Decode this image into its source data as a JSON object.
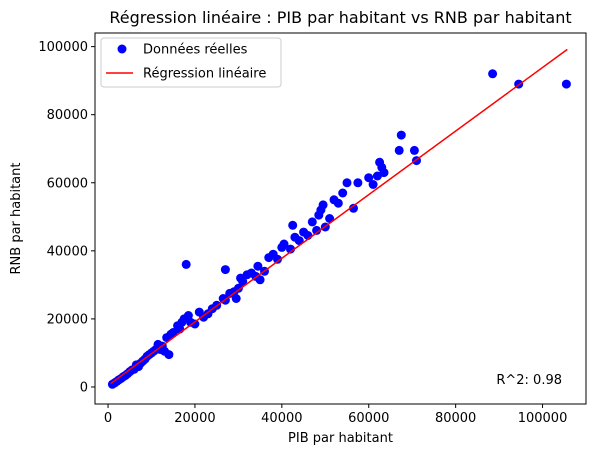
{
  "chart_data": {
    "type": "scatter",
    "title": "Régression linéaire : PIB par habitant vs RNB par habitant",
    "xlabel": "PIB par habitant",
    "ylabel": "RNB par habitant",
    "xlim": [
      -3000,
      110000
    ],
    "ylim": [
      -5000,
      104000
    ],
    "xticks": [
      0,
      20000,
      40000,
      60000,
      80000,
      100000
    ],
    "yticks": [
      0,
      20000,
      40000,
      60000,
      80000,
      100000
    ],
    "grid": false,
    "legend_position": "top-left",
    "annotation": "R^2: 0.98",
    "series": [
      {
        "name": "Données réelles",
        "kind": "scatter",
        "color": "#0000ff",
        "points": [
          [
            1000,
            800
          ],
          [
            1500,
            1200
          ],
          [
            2000,
            1600
          ],
          [
            2500,
            2100
          ],
          [
            3000,
            2500
          ],
          [
            3500,
            3000
          ],
          [
            4000,
            3400
          ],
          [
            4500,
            3900
          ],
          [
            5000,
            4500
          ],
          [
            5500,
            5000
          ],
          [
            6000,
            5200
          ],
          [
            6500,
            6500
          ],
          [
            7000,
            6000
          ],
          [
            7500,
            7000
          ],
          [
            8000,
            7600
          ],
          [
            8500,
            8200
          ],
          [
            9000,
            9000
          ],
          [
            9500,
            9500
          ],
          [
            10000,
            10000
          ],
          [
            10500,
            10500
          ],
          [
            11000,
            11000
          ],
          [
            11500,
            12500
          ],
          [
            12000,
            11000
          ],
          [
            12500,
            12000
          ],
          [
            13000,
            10500
          ],
          [
            13500,
            14500
          ],
          [
            14000,
            9500
          ],
          [
            14500,
            15500
          ],
          [
            15000,
            16000
          ],
          [
            16000,
            18000
          ],
          [
            16500,
            17000
          ],
          [
            17000,
            19000
          ],
          [
            17500,
            20000
          ],
          [
            18000,
            36000
          ],
          [
            18500,
            21000
          ],
          [
            19000,
            19000
          ],
          [
            20000,
            18500
          ],
          [
            21000,
            22000
          ],
          [
            22000,
            20500
          ],
          [
            23000,
            21500
          ],
          [
            24000,
            23000
          ],
          [
            25000,
            24000
          ],
          [
            26500,
            26000
          ],
          [
            27000,
            25500
          ],
          [
            27000,
            34500
          ],
          [
            28000,
            27500
          ],
          [
            29000,
            28000
          ],
          [
            29500,
            26000
          ],
          [
            30000,
            29000
          ],
          [
            30500,
            32000
          ],
          [
            31000,
            31000
          ],
          [
            32000,
            33000
          ],
          [
            33000,
            33500
          ],
          [
            34000,
            32500
          ],
          [
            34500,
            35500
          ],
          [
            35000,
            31500
          ],
          [
            36000,
            34000
          ],
          [
            37000,
            38000
          ],
          [
            38000,
            39000
          ],
          [
            39000,
            37500
          ],
          [
            40000,
            41000
          ],
          [
            40500,
            42000
          ],
          [
            42000,
            40500
          ],
          [
            42500,
            47500
          ],
          [
            43000,
            44000
          ],
          [
            44000,
            43000
          ],
          [
            45000,
            45500
          ],
          [
            46000,
            44500
          ],
          [
            47000,
            48500
          ],
          [
            48000,
            46000
          ],
          [
            48500,
            50500
          ],
          [
            49000,
            52000
          ],
          [
            49500,
            53500
          ],
          [
            50000,
            47000
          ],
          [
            51000,
            49500
          ],
          [
            52000,
            55000
          ],
          [
            53000,
            54000
          ],
          [
            54000,
            57000
          ],
          [
            55000,
            60000
          ],
          [
            56500,
            52500
          ],
          [
            57500,
            60000
          ],
          [
            60000,
            61500
          ],
          [
            61000,
            59500
          ],
          [
            62000,
            62000
          ],
          [
            62500,
            66000
          ],
          [
            63000,
            64500
          ],
          [
            63500,
            63000
          ],
          [
            67000,
            69500
          ],
          [
            67500,
            74000
          ],
          [
            70500,
            69500
          ],
          [
            71000,
            66500
          ],
          [
            88500,
            92000
          ],
          [
            94500,
            89000
          ],
          [
            105500,
            89000
          ]
        ]
      },
      {
        "name": "Régression linéaire",
        "kind": "line",
        "color": "#ff0000",
        "x": [
          600,
          105700
        ],
        "y": [
          1000,
          99200
        ]
      }
    ]
  }
}
